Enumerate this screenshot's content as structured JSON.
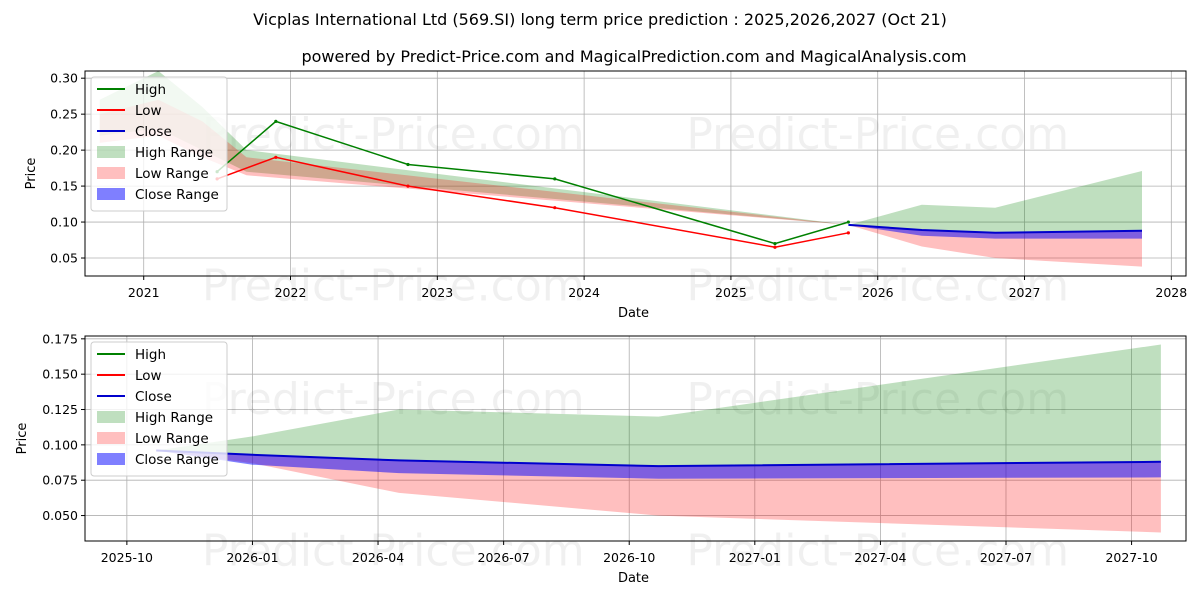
{
  "title_line1": "Vicplas International Ltd (569.SI) long term price prediction : 2025,2026,2027 (Oct 21)",
  "title_line2": "powered by Predict-Price.com and MagicalPrediction.com and MagicalAnalysis.com",
  "watermark": "Predict-Price.com",
  "chart_data": [
    {
      "type": "line",
      "xlabel": "Date",
      "ylabel": "Price",
      "xlim": [
        2020.6,
        2028.1
      ],
      "ylim": [
        0.025,
        0.31
      ],
      "xticks": [
        2021,
        2022,
        2023,
        2024,
        2025,
        2026,
        2027,
        2028
      ],
      "xtick_labels": [
        "2021",
        "2022",
        "2023",
        "2024",
        "2025",
        "2026",
        "2027",
        "2028"
      ],
      "yticks": [
        0.05,
        0.1,
        0.15,
        0.2,
        0.25,
        0.3
      ],
      "ytick_labels": [
        "0.05",
        "0.10",
        "0.15",
        "0.20",
        "0.25",
        "0.30"
      ],
      "grid": true,
      "legend": {
        "position": "upper-left",
        "entries": [
          "High",
          "Low",
          "Close",
          "High Range",
          "Low Range",
          "Close Range"
        ]
      },
      "series": [
        {
          "name": "High",
          "color": "#008000",
          "x": [
            2021.5,
            2021.9,
            2022.8,
            2023.8,
            2025.3,
            2025.8
          ],
          "values": [
            0.17,
            0.24,
            0.18,
            0.16,
            0.07,
            0.1
          ]
        },
        {
          "name": "Low",
          "color": "#ff0000",
          "x": [
            2021.5,
            2021.9,
            2022.8,
            2023.8,
            2025.3,
            2025.8
          ],
          "values": [
            0.16,
            0.19,
            0.15,
            0.12,
            0.065,
            0.085
          ]
        }
      ],
      "bands": [
        {
          "name": "High Range",
          "color": "#008000",
          "x": [
            2020.7,
            2021.1,
            2021.4,
            2021.7,
            2025.8,
            2026.3,
            2026.8,
            2027.8
          ],
          "upper": [
            0.27,
            0.31,
            0.26,
            0.2,
            0.096,
            0.124,
            0.12,
            0.171
          ],
          "lower": [
            0.22,
            0.23,
            0.2,
            0.17,
            0.096,
            0.09,
            0.085,
            0.088
          ]
        },
        {
          "name": "Low Range",
          "color": "#ff0000",
          "x": [
            2020.7,
            2021.1,
            2021.4,
            2021.7,
            2025.8,
            2026.3,
            2026.8,
            2027.8
          ],
          "upper": [
            0.25,
            0.27,
            0.24,
            0.19,
            0.096,
            0.09,
            0.085,
            0.088
          ],
          "lower": [
            0.21,
            0.22,
            0.19,
            0.165,
            0.096,
            0.066,
            0.05,
            0.038
          ]
        },
        {
          "name": "Close Range",
          "color": "#0000ff",
          "x": [
            2025.8,
            2026.3,
            2026.8,
            2027.8
          ],
          "upper": [
            0.096,
            0.089,
            0.085,
            0.088
          ],
          "lower": [
            0.096,
            0.081,
            0.077,
            0.077
          ]
        }
      ],
      "close_line": {
        "name": "Close",
        "color": "#0000cc",
        "x": [
          2025.8,
          2026.3,
          2026.8,
          2027.8
        ],
        "values": [
          0.096,
          0.089,
          0.085,
          0.088
        ]
      }
    },
    {
      "type": "line",
      "xlabel": "Date",
      "ylabel": "Price",
      "xlim": [
        0.0,
        26.3
      ],
      "ylim": [
        0.032,
        0.177
      ],
      "xticks": [
        1.0,
        4.0,
        7.0,
        10.0,
        13.0,
        16.0,
        19.0,
        22.0,
        25.0
      ],
      "xtick_labels": [
        "2025-10",
        "2026-01",
        "2026-04",
        "2026-07",
        "2026-10",
        "2027-01",
        "2027-04",
        "2027-07",
        "2027-10"
      ],
      "yticks": [
        0.05,
        0.075,
        0.1,
        0.125,
        0.15,
        0.175
      ],
      "ytick_labels": [
        "0.050",
        "0.075",
        "0.100",
        "0.125",
        "0.150",
        "0.175"
      ],
      "grid": true,
      "legend": {
        "position": "upper-left",
        "entries": [
          "High",
          "Low",
          "Close",
          "High Range",
          "Low Range",
          "Close Range"
        ]
      },
      "bands": [
        {
          "name": "High Range",
          "color": "#008000",
          "x": [
            1.7,
            4.0,
            7.5,
            13.7,
            25.7
          ],
          "upper": [
            0.096,
            0.106,
            0.125,
            0.12,
            0.171
          ],
          "lower": [
            0.096,
            0.093,
            0.089,
            0.085,
            0.088
          ]
        },
        {
          "name": "Low Range",
          "color": "#ff0000",
          "x": [
            1.7,
            4.0,
            7.5,
            13.7,
            25.7
          ],
          "upper": [
            0.096,
            0.093,
            0.089,
            0.085,
            0.088
          ],
          "lower": [
            0.096,
            0.087,
            0.066,
            0.05,
            0.038
          ]
        },
        {
          "name": "Close Range",
          "color": "#0000ff",
          "x": [
            1.7,
            4.0,
            7.5,
            13.7,
            25.7
          ],
          "upper": [
            0.096,
            0.093,
            0.089,
            0.085,
            0.088
          ],
          "lower": [
            0.096,
            0.086,
            0.08,
            0.076,
            0.077
          ]
        }
      ],
      "close_line": {
        "name": "Close",
        "color": "#0000cc",
        "x": [
          1.7,
          4.0,
          7.5,
          13.7,
          25.7
        ],
        "values": [
          0.096,
          0.093,
          0.089,
          0.085,
          0.088
        ]
      }
    }
  ]
}
